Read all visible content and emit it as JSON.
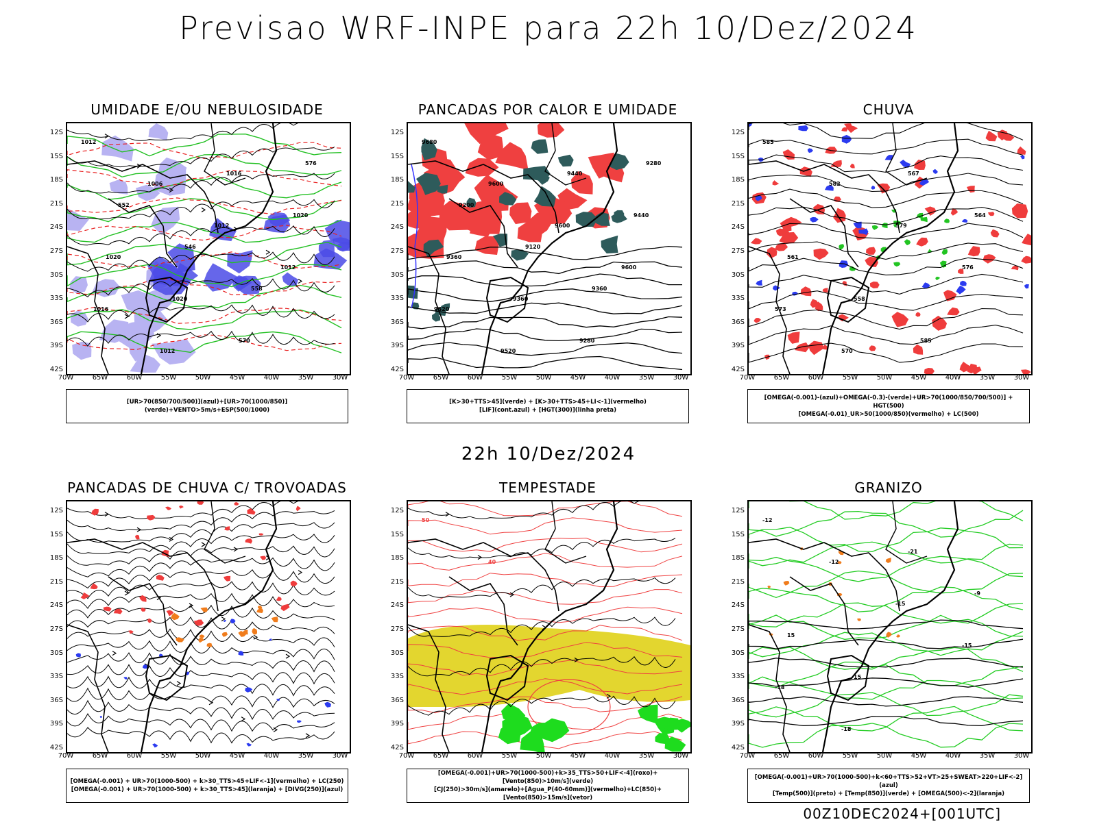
{
  "header": {
    "title": "Previsao WRF-INPE  para 22h 10/Dez/2024"
  },
  "middle": {
    "title": "22h 10/Dez/2024"
  },
  "footer": {
    "stamp": "00Z10DEC2024+[001UTC]"
  },
  "axes": {
    "lat_labels": [
      "12S",
      "15S",
      "18S",
      "21S",
      "24S",
      "27S",
      "30S",
      "33S",
      "36S",
      "39S",
      "42S"
    ],
    "lon_labels": [
      "70W",
      "65W",
      "60W",
      "55W",
      "50W",
      "45W",
      "40W",
      "35W",
      "30W"
    ]
  },
  "panels": [
    {
      "title": "UMIDADE E/OU NEBULOSIDADE",
      "legend": [
        "[UR>70(850/700/500)](azul)+[UR>70(1000/850)](verde)+VENTO>5m/s+ESP(500/1000)"
      ],
      "labels": [
        "1012",
        "1006",
        "1012",
        "1012",
        "1016",
        "1012",
        "1016",
        "1020",
        "1020",
        "1020",
        "570",
        "576",
        "552",
        "546",
        "558"
      ]
    },
    {
      "title": "PANCADAS POR CALOR E UMIDADE",
      "legend": [
        "[K>30+TTS>45](verde) + [K>30+TTS>45+LI<-1](vermelho)",
        "[LIF](cont.azul) + [HGT(300)](linha preta)"
      ],
      "labels": [
        "9680",
        "9600",
        "9600",
        "9600",
        "9520",
        "9520",
        "9440",
        "9440",
        "9360",
        "9360",
        "9280",
        "9280",
        "9200",
        "9120",
        "9360"
      ]
    },
    {
      "title": "CHUVA",
      "legend": [
        "[OMEGA(-0.001)-(azul)+OMEGA(-0.3)-(verde)+UR>70(1000/850/700/500)] + HGT(500)",
        "[OMEGA(-0.01)_UR>50(1000/850)(vermelho) + LC(500)"
      ],
      "labels": [
        "585",
        "582",
        "579",
        "576",
        "573",
        "570",
        "567",
        "564",
        "561",
        "558",
        "585"
      ]
    },
    {
      "title": "PANCADAS DE CHUVA C/ TROVOADAS",
      "legend": [
        "[OMEGA(-0.001) + UR>70(1000-500) + k>30_TTS>45+LIF<-1](vermelho) + LC(250)",
        "[OMEGA(-0.001) + UR>70(1000-500) + k>30_TTS>45](laranja) + [DIVG(250)](azul)"
      ],
      "labels": []
    },
    {
      "title": "TEMPESTADE",
      "legend": [
        "[OMEGA(-0.001)+UR>70(1000-500)+k>35_TTS>50+LIF<-4](roxo)+[Vento(850)>10m/s](verde)",
        "[CJ(250)>30m/s](amarelo)+[Agua_P(40-60mm)](vermelho)+LC(850)+[Vento(850)>15m/s](vetor)"
      ],
      "labels": [
        "50",
        "40"
      ]
    },
    {
      "title": "GRANIZO",
      "legend": [
        "[OMEGA(-0.001)+UR>70(1000-500)+k<60+TTS>52+VT>25+SWEAT>220+LIF<-2](azul)",
        "[Temp(500)](preto) + [Temp(850)](verde) + [OMEGA(500)<-2](laranja)"
      ],
      "labels": [
        "-12",
        "-12",
        "-15",
        "-15",
        "-18",
        "-18",
        "-21",
        "-9",
        "15",
        "15"
      ]
    }
  ]
}
